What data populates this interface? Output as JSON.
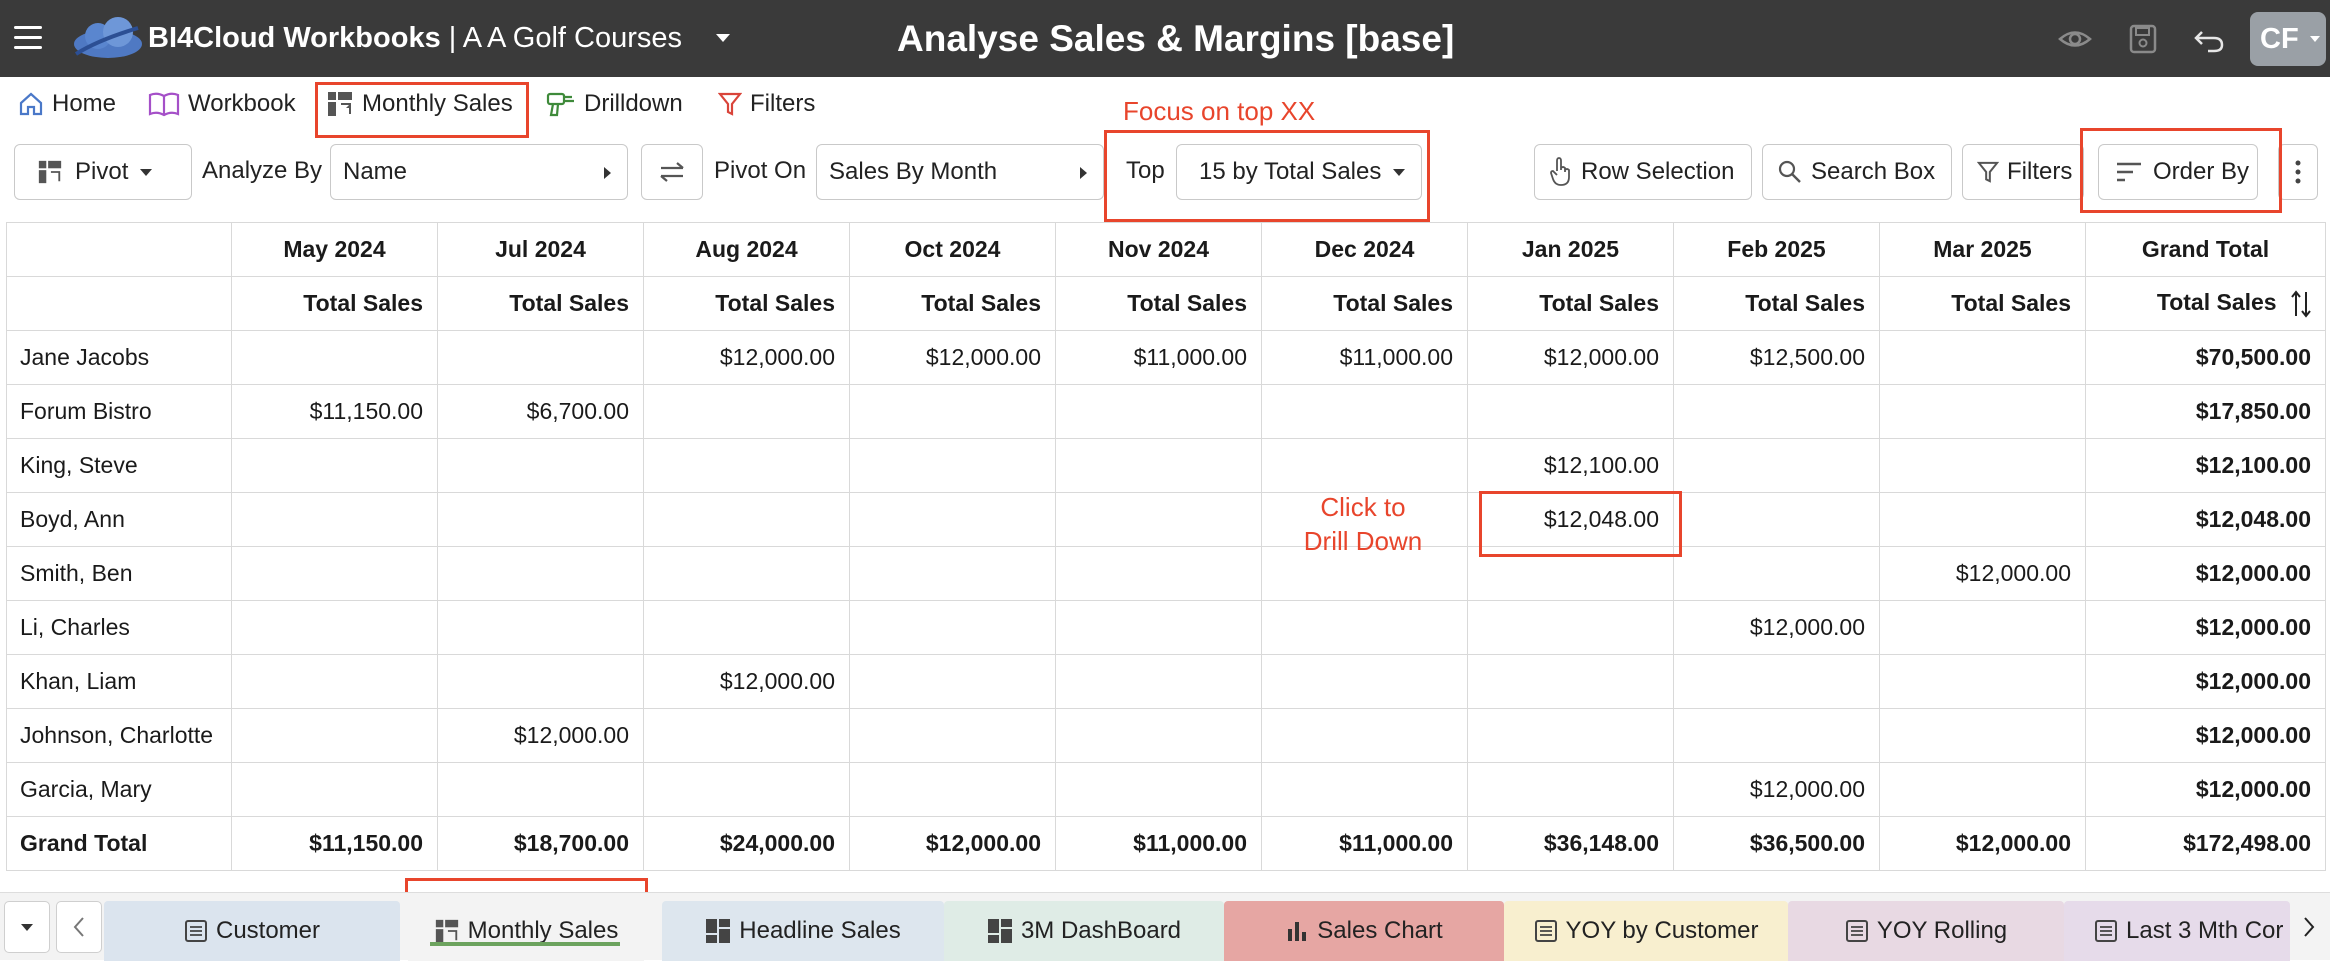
{
  "app": {
    "brand": "BI4Cloud Workbooks",
    "separator": "|",
    "workbook": "A A Golf Courses",
    "page_title": "Analyse Sales & Margins [base]",
    "user_initials": "CF"
  },
  "nav": {
    "home": "Home",
    "workbook": "Workbook",
    "monthly_sales": "Monthly Sales",
    "drilldown": "Drilldown",
    "filters": "Filters"
  },
  "toolbar": {
    "pivot": "Pivot",
    "analyze_by_label": "Analyze By",
    "analyze_by_value": "Name",
    "pivot_on_label": "Pivot On",
    "pivot_on_value": "Sales By Month",
    "top_label": "Top",
    "top_value": "15 by Total Sales",
    "row_selection": "Row Selection",
    "search_box": "Search Box",
    "filters": "Filters",
    "order_by": "Order By"
  },
  "annotations": {
    "focus": "Focus on top XX",
    "drill_line1": "Click to",
    "drill_line2": "Drill Down"
  },
  "table": {
    "months": [
      "May 2024",
      "Jul 2024",
      "Aug 2024",
      "Oct 2024",
      "Nov 2024",
      "Dec 2024",
      "Jan 2025",
      "Feb 2025",
      "Mar 2025",
      "Grand Total"
    ],
    "measure": "Total Sales",
    "rows": [
      {
        "name": "Jane Jacobs",
        "cells": [
          "",
          "",
          "$12,000.00",
          "$12,000.00",
          "$11,000.00",
          "$11,000.00",
          "$12,000.00",
          "$12,500.00",
          "",
          "$70,500.00"
        ]
      },
      {
        "name": "Forum Bistro",
        "cells": [
          "$11,150.00",
          "$6,700.00",
          "",
          "",
          "",
          "",
          "",
          "",
          "",
          "$17,850.00"
        ]
      },
      {
        "name": "King, Steve",
        "cells": [
          "",
          "",
          "",
          "",
          "",
          "",
          "$12,100.00",
          "",
          "",
          "$12,100.00"
        ]
      },
      {
        "name": "Boyd, Ann",
        "cells": [
          "",
          "",
          "",
          "",
          "",
          "",
          "$12,048.00",
          "",
          "",
          "$12,048.00"
        ]
      },
      {
        "name": "Smith, Ben",
        "cells": [
          "",
          "",
          "",
          "",
          "",
          "",
          "",
          "",
          "$12,000.00",
          "$12,000.00"
        ]
      },
      {
        "name": "Li, Charles",
        "cells": [
          "",
          "",
          "",
          "",
          "",
          "",
          "",
          "$12,000.00",
          "",
          "$12,000.00"
        ]
      },
      {
        "name": "Khan, Liam",
        "cells": [
          "",
          "",
          "$12,000.00",
          "",
          "",
          "",
          "",
          "",
          "",
          "$12,000.00"
        ]
      },
      {
        "name": "Johnson, Charlotte",
        "cells": [
          "",
          "$12,000.00",
          "",
          "",
          "",
          "",
          "",
          "",
          "",
          "$12,000.00"
        ]
      },
      {
        "name": "Garcia, Mary",
        "cells": [
          "",
          "",
          "",
          "",
          "",
          "",
          "",
          "$12,000.00",
          "",
          "$12,000.00"
        ]
      }
    ],
    "total": {
      "name": "Grand Total",
      "cells": [
        "$11,150.00",
        "$18,700.00",
        "$24,000.00",
        "$12,000.00",
        "$11,000.00",
        "$11,000.00",
        "$36,148.00",
        "$36,500.00",
        "$12,000.00",
        "$172,498.00"
      ]
    }
  },
  "tabs": [
    {
      "label": "Customer",
      "color": "#dbe4ee"
    },
    {
      "label": "Monthly Sales",
      "color": "#f3f3f3"
    },
    {
      "label": "Headline Sales",
      "color": "#dde6ee"
    },
    {
      "label": "3M DashBoard",
      "color": "#dfece6"
    },
    {
      "label": "Sales Chart",
      "color": "#e6a6a3"
    },
    {
      "label": "YOY by Customer",
      "color": "#f8efcf"
    },
    {
      "label": "YOY Rolling",
      "color": "#e8d9e3"
    },
    {
      "label": "Last 3 Mth Cor",
      "color": "#e6dbea"
    }
  ],
  "colors": {
    "annotation": "#e8452c",
    "topbar": "#3a3a3a"
  }
}
